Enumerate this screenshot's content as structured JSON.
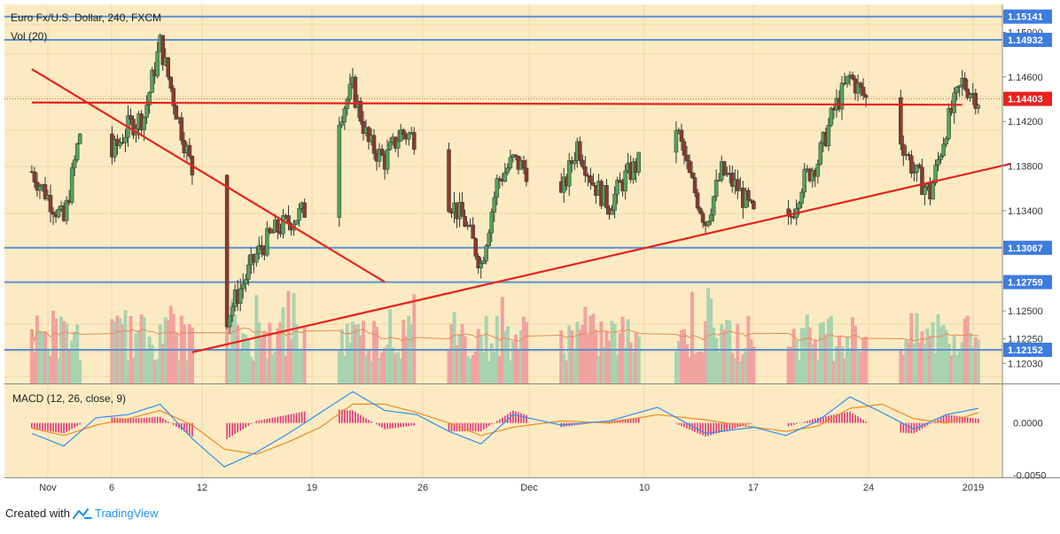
{
  "header": {
    "title": "Euro Fx/U.S. Dollar, 240, FXCM",
    "volume_label": "Vol (20)",
    "macd_label": "MACD (12, 26, close, 9)"
  },
  "footer": {
    "created_with": "Created with",
    "brand": "TradingView"
  },
  "colors": {
    "background": "#fcebc2",
    "up": "#53a35a",
    "down": "#8b3a2e",
    "vol_up": "#a8d3b0",
    "vol_down": "#f2a29f",
    "hline": "#5b8fd6",
    "trendline": "#e8221f",
    "macd": "#2f8ff0",
    "signal": "#f08a1f",
    "hist": "#e0357a",
    "badge": "#3d7ce0",
    "price_badge": "#e8221f"
  },
  "chart_data": [
    {
      "type": "candlestick",
      "title": "Euro Fx/U.S. Dollar, 240, FXCM",
      "ylim": [
        1.1185,
        1.1525
      ],
      "y_ticks": [
        "1.12030",
        "1.12250",
        "1.12500",
        "1.13400",
        "1.13800",
        "1.14200",
        "1.14600",
        "1.15000"
      ],
      "x_ticks": [
        "Nov",
        "6",
        "12",
        "19",
        "26",
        "Dec",
        "10",
        "17",
        "24",
        "2019"
      ],
      "horizontal_levels": [
        {
          "label": "1.15141",
          "value": 1.15141
        },
        {
          "label": "1.14932",
          "value": 1.14932
        },
        {
          "label": "1.13067",
          "value": 1.13067
        },
        {
          "label": "1.12759",
          "value": 1.12759
        },
        {
          "label": "1.12152",
          "value": 1.12152
        }
      ],
      "current_price": {
        "label": "1.14403",
        "value": 1.14403
      },
      "trendlines": [
        {
          "name": "descending",
          "from": [
            "Oct 31",
            1.1467
          ],
          "to": [
            "Nov 22",
            1.1276
          ]
        },
        {
          "name": "ascending",
          "from": [
            "Nov 10",
            1.1213
          ],
          "to": [
            "Jan 1",
            1.1382
          ]
        },
        {
          "name": "horizontal resistance",
          "from": [
            "Oct 31",
            1.1437
          ],
          "to": [
            "Dec 28",
            1.1435
          ]
        }
      ],
      "anchors": [
        {
          "date": "Oct 31",
          "value": 1.1375
        },
        {
          "date": "Nov 2",
          "value": 1.133
        },
        {
          "date": "Nov 3",
          "value": 1.141
        },
        {
          "date": "Nov 4",
          "value": 1.1405
        },
        {
          "date": "Nov 5",
          "value": 1.139
        },
        {
          "date": "Nov 6",
          "value": 1.1415
        },
        {
          "date": "Nov 7",
          "value": 1.1425
        },
        {
          "date": "Nov 8",
          "value": 1.149
        },
        {
          "date": "Nov 9",
          "value": 1.143
        },
        {
          "date": "Nov 10",
          "value": 1.1375
        },
        {
          "date": "Nov 11",
          "value": 1.133
        },
        {
          "date": "Nov 12",
          "value": 1.124
        },
        {
          "date": "Nov 13",
          "value": 1.127
        },
        {
          "date": "Nov 14",
          "value": 1.13
        },
        {
          "date": "Nov 15",
          "value": 1.132
        },
        {
          "date": "Nov 16",
          "value": 1.133
        },
        {
          "date": "Nov 17",
          "value": 1.134
        },
        {
          "date": "Nov 18",
          "value": 1.137
        },
        {
          "date": "Nov 19",
          "value": 1.142
        },
        {
          "date": "Nov 20",
          "value": 1.145
        },
        {
          "date": "Nov 21",
          "value": 1.14
        },
        {
          "date": "Nov 22",
          "value": 1.1385
        },
        {
          "date": "Nov 23",
          "value": 1.141
        },
        {
          "date": "Nov 24",
          "value": 1.1405
        },
        {
          "date": "Nov 25",
          "value": 1.137
        },
        {
          "date": "Nov 26",
          "value": 1.135
        },
        {
          "date": "Nov 27",
          "value": 1.133
        },
        {
          "date": "Nov 28",
          "value": 1.1292
        },
        {
          "date": "Nov 29",
          "value": 1.1365
        },
        {
          "date": "Nov 30",
          "value": 1.1385
        },
        {
          "date": "Dec 1",
          "value": 1.1375
        },
        {
          "date": "Dec 2",
          "value": 1.1345
        },
        {
          "date": "Dec 3",
          "value": 1.1352
        },
        {
          "date": "Dec 4",
          "value": 1.14
        },
        {
          "date": "Dec 5",
          "value": 1.1365
        },
        {
          "date": "Dec 6",
          "value": 1.1345
        },
        {
          "date": "Dec 7",
          "value": 1.137
        },
        {
          "date": "Dec 8",
          "value": 1.1385
        },
        {
          "date": "Dec 9",
          "value": 1.1395
        },
        {
          "date": "Dec 10",
          "value": 1.1425
        },
        {
          "date": "Dec 11",
          "value": 1.137
        },
        {
          "date": "Dec 12",
          "value": 1.133
        },
        {
          "date": "Dec 13",
          "value": 1.1375
        },
        {
          "date": "Dec 14",
          "value": 1.136
        },
        {
          "date": "Dec 15",
          "value": 1.1335
        },
        {
          "date": "Dec 16",
          "value": 1.128
        },
        {
          "date": "Dec 17",
          "value": 1.132
        },
        {
          "date": "Dec 18",
          "value": 1.1365
        },
        {
          "date": "Dec 19",
          "value": 1.1385
        },
        {
          "date": "Dec 20",
          "value": 1.143
        },
        {
          "date": "Dec 21",
          "value": 1.146
        },
        {
          "date": "Dec 22",
          "value": 1.144
        },
        {
          "date": "Dec 23",
          "value": 1.139
        },
        {
          "date": "Dec 24",
          "value": 1.141
        },
        {
          "date": "Dec 25",
          "value": 1.1375
        },
        {
          "date": "Dec 26",
          "value": 1.1355
        },
        {
          "date": "Dec 27",
          "value": 1.1415
        },
        {
          "date": "Dec 28",
          "value": 1.1455
        },
        {
          "date": "Dec 29",
          "value": 1.144
        }
      ]
    },
    {
      "type": "bar",
      "name": "Vol (20)",
      "y_ticks": [
        "1.12030",
        "1.12250",
        "1.12500"
      ]
    },
    {
      "type": "line",
      "name": "MACD (12, 26, close, 9)",
      "y_ticks": [
        "0.0000",
        "-0.0050"
      ],
      "ylim": [
        -0.0052,
        0.0037
      ],
      "macd_anchors": [
        {
          "date": "Oct 31",
          "value": -0.001
        },
        {
          "date": "Nov 2",
          "value": -0.0022
        },
        {
          "date": "Nov 4",
          "value": 0.0005
        },
        {
          "date": "Nov 6",
          "value": 0.0008
        },
        {
          "date": "Nov 8",
          "value": 0.0018
        },
        {
          "date": "Nov 10",
          "value": -0.0015
        },
        {
          "date": "Nov 12",
          "value": -0.0042
        },
        {
          "date": "Nov 14",
          "value": -0.0028
        },
        {
          "date": "Nov 16",
          "value": -0.001
        },
        {
          "date": "Nov 18",
          "value": 0.001
        },
        {
          "date": "Nov 20",
          "value": 0.003
        },
        {
          "date": "Nov 22",
          "value": 0.0012
        },
        {
          "date": "Nov 24",
          "value": 0.0008
        },
        {
          "date": "Nov 26",
          "value": -0.0008
        },
        {
          "date": "Nov 28",
          "value": -0.002
        },
        {
          "date": "Nov 30",
          "value": 0.0008
        },
        {
          "date": "Dec 3",
          "value": -0.0002
        },
        {
          "date": "Dec 6",
          "value": 0.0002
        },
        {
          "date": "Dec 9",
          "value": 0.0015
        },
        {
          "date": "Dec 12",
          "value": -0.001
        },
        {
          "date": "Dec 15",
          "value": -0.0004
        },
        {
          "date": "Dec 17",
          "value": -0.0012
        },
        {
          "date": "Dec 19",
          "value": 0.0002
        },
        {
          "date": "Dec 21",
          "value": 0.0025
        },
        {
          "date": "Dec 23",
          "value": 0.001
        },
        {
          "date": "Dec 25",
          "value": -0.0006
        },
        {
          "date": "Dec 27",
          "value": 0.0008
        },
        {
          "date": "Dec 29",
          "value": 0.0014
        }
      ],
      "signal_anchors": [
        {
          "date": "Oct 31",
          "value": -0.0005
        },
        {
          "date": "Nov 2",
          "value": -0.0012
        },
        {
          "date": "Nov 4",
          "value": -0.0002
        },
        {
          "date": "Nov 6",
          "value": 0.0004
        },
        {
          "date": "Nov 8",
          "value": 0.0012
        },
        {
          "date": "Nov 10",
          "value": -0.0002
        },
        {
          "date": "Nov 12",
          "value": -0.0025
        },
        {
          "date": "Nov 14",
          "value": -0.003
        },
        {
          "date": "Nov 16",
          "value": -0.0018
        },
        {
          "date": "Nov 18",
          "value": -0.0004
        },
        {
          "date": "Nov 20",
          "value": 0.0018
        },
        {
          "date": "Nov 22",
          "value": 0.0018
        },
        {
          "date": "Nov 24",
          "value": 0.001
        },
        {
          "date": "Nov 26",
          "value": 0.0
        },
        {
          "date": "Nov 28",
          "value": -0.0012
        },
        {
          "date": "Nov 30",
          "value": -0.0004
        },
        {
          "date": "Dec 3",
          "value": 0.0002
        },
        {
          "date": "Dec 6",
          "value": 0.0
        },
        {
          "date": "Dec 9",
          "value": 0.0008
        },
        {
          "date": "Dec 12",
          "value": 0.0003
        },
        {
          "date": "Dec 15",
          "value": -0.0004
        },
        {
          "date": "Dec 17",
          "value": -0.0008
        },
        {
          "date": "Dec 19",
          "value": -0.0003
        },
        {
          "date": "Dec 21",
          "value": 0.0014
        },
        {
          "date": "Dec 23",
          "value": 0.0018
        },
        {
          "date": "Dec 25",
          "value": 0.0004
        },
        {
          "date": "Dec 27",
          "value": 0.0
        },
        {
          "date": "Dec 29",
          "value": 0.001
        }
      ]
    }
  ]
}
